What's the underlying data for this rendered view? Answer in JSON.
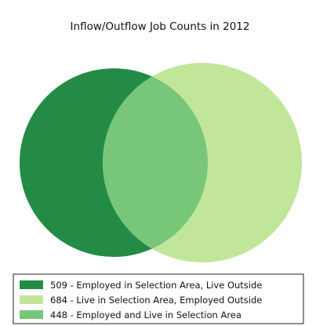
{
  "chart_data": {
    "type": "venn",
    "title": "Inflow/Outflow Job Counts in 2012",
    "sets": [
      {
        "key": "employed_outside",
        "value": 509,
        "label": "509 - Employed in Selection Area, Live Outside",
        "color": "#238b45"
      },
      {
        "key": "live_outside",
        "value": 684,
        "label": "684 - Live in Selection Area, Employed Outside",
        "color": "#c2e699"
      },
      {
        "key": "both",
        "value": 448,
        "label": "448 - Employed and Live in Selection Area",
        "color": "#78c679"
      }
    ],
    "legend_position": "bottom",
    "grid": false
  }
}
